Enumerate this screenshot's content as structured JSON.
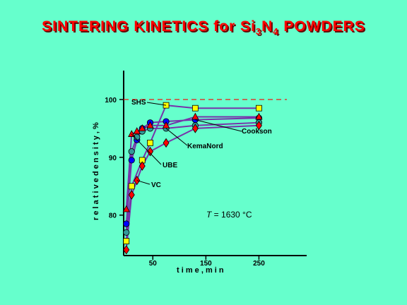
{
  "title": {
    "pre": "SINTERING  KINETICS  for  Si",
    "sub1": "3",
    "mid": "N",
    "sub2": "4",
    "post": "  POWDERS"
  },
  "chart_data": {
    "type": "line",
    "title": "SINTERING KINETICS for Si3N4 POWDERS",
    "xlabel": "t i m e ,  m i n",
    "ylabel": "r e l a t i v e   d e n s i t y ,  %",
    "xlim": [
      -5,
      340
    ],
    "ylim": [
      73,
      105
    ],
    "xticks": [
      50,
      150,
      250
    ],
    "yticks": [
      80,
      90,
      100
    ],
    "reference_line": {
      "y": 100,
      "color": "#ff0000",
      "style": "dashed"
    },
    "annotation": {
      "prefix": "T",
      "text": " = 1630 °C"
    },
    "series": [
      {
        "name": "SHS",
        "color": "#ffff00",
        "marker": "square",
        "x": [
          0,
          10,
          30,
          45,
          75,
          130,
          250
        ],
        "y": [
          75.5,
          85,
          89.5,
          92.5,
          99,
          98.5,
          98.5
        ]
      },
      {
        "name": "Cookson",
        "color": "#0000ff",
        "marker": "circle",
        "x": [
          0,
          10,
          20,
          30,
          45,
          75,
          130,
          250
        ],
        "y": [
          78.5,
          89.5,
          93,
          95,
          96,
          96.2,
          96.5,
          96.8
        ]
      },
      {
        "name": "KemaNord",
        "color": "#339999",
        "marker": "circle",
        "x": [
          0,
          10,
          20,
          30,
          45,
          75,
          130,
          250
        ],
        "y": [
          77,
          91,
          93.5,
          94.5,
          95,
          95,
          95.5,
          96
        ]
      },
      {
        "name": "UBE",
        "color": "#ff0000",
        "marker": "triangle",
        "x": [
          0,
          10,
          20,
          30,
          45,
          75,
          130,
          250
        ],
        "y": [
          81,
          94,
          94.5,
          95,
          95.5,
          95.5,
          97,
          97
        ]
      },
      {
        "name": "VC",
        "color": "#ff0000",
        "marker": "diamond",
        "x": [
          0,
          10,
          20,
          30,
          45,
          75,
          130,
          250
        ],
        "y": [
          74,
          83.5,
          86,
          88.5,
          91,
          92.5,
          95,
          95.5
        ]
      }
    ],
    "labels": {
      "shs": "SHS",
      "cookson": "Cookson",
      "kemanord": "KemaNord",
      "ube": "UBE",
      "vc": "VC"
    },
    "line_color": "#7733aa"
  }
}
